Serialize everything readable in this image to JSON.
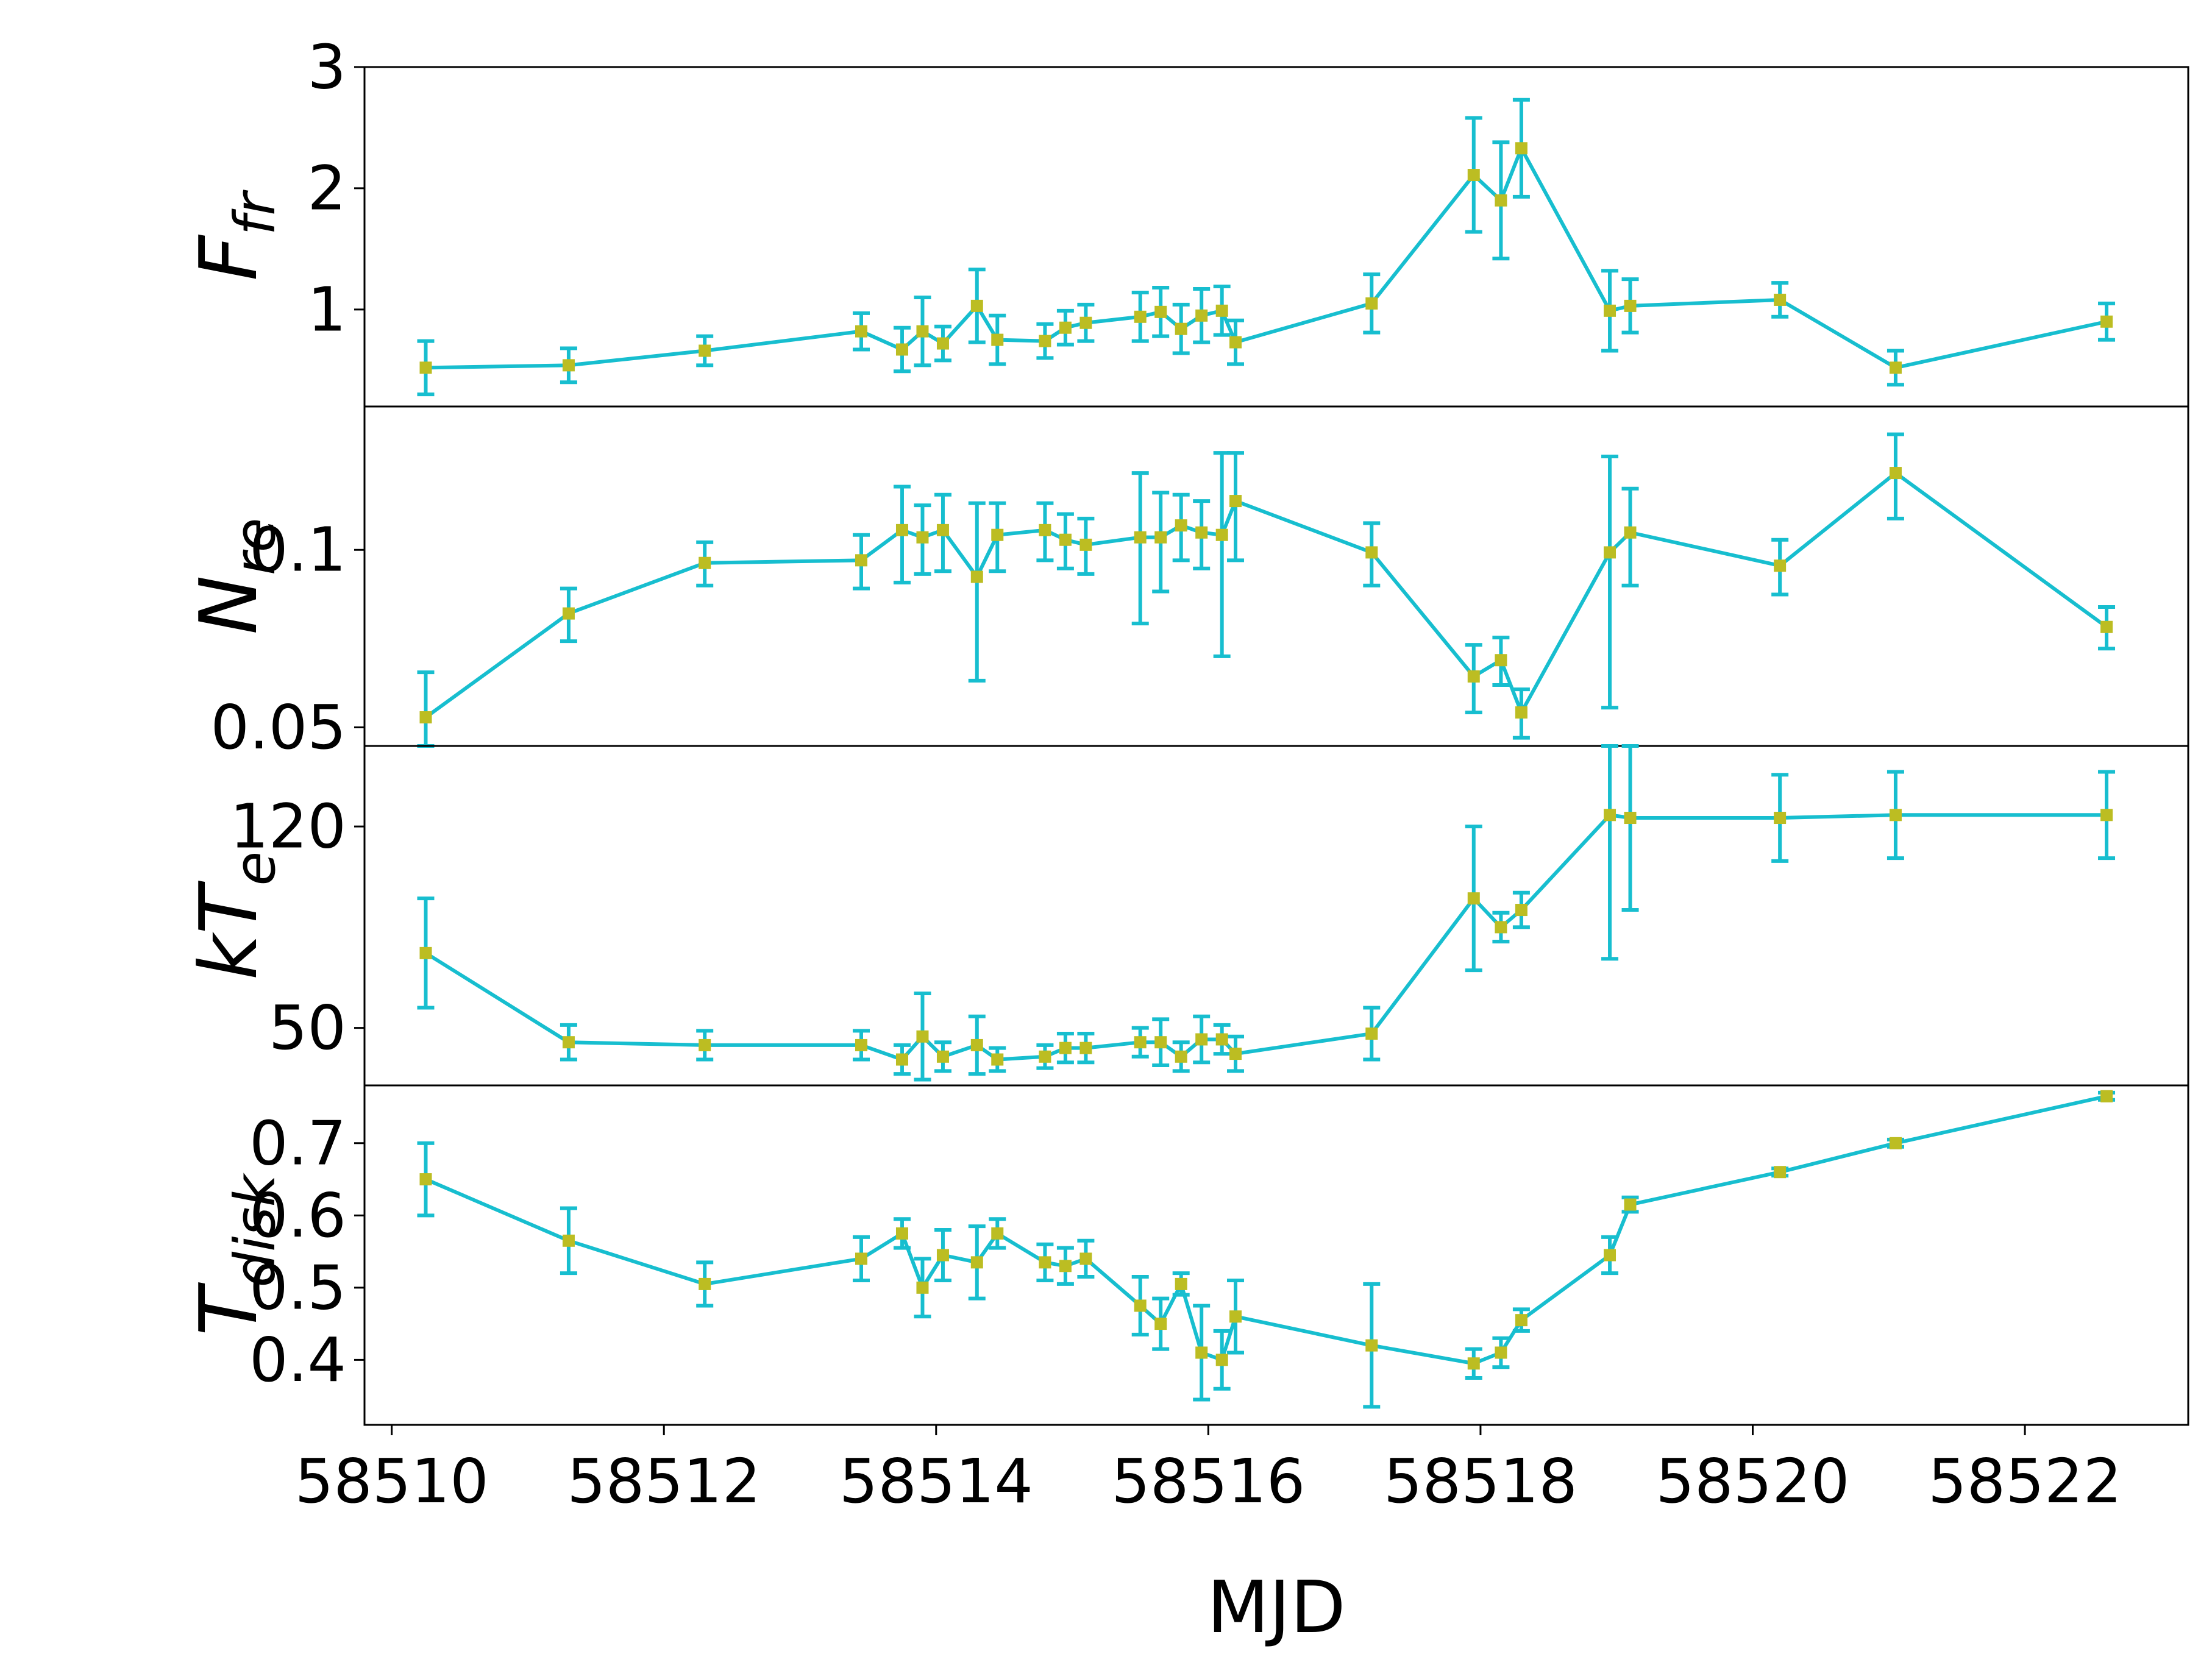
{
  "style": {
    "line_color": "#17becf",
    "error_color": "#17becf",
    "marker_color": "#bcbd22",
    "frame_color": "#000000"
  },
  "chart_data": {
    "type": "line",
    "layout": "4 vertically stacked panels sharing the x axis",
    "xlabel": "MJD",
    "xlim": [
      58509.8,
      58523.2
    ],
    "x_ticks": [
      58510,
      58512,
      58514,
      58516,
      58518,
      58520,
      58522
    ],
    "x_tick_labels": [
      "58510",
      "58512",
      "58514",
      "58516",
      "58518",
      "58520",
      "58522"
    ],
    "x": [
      58510.25,
      58511.3,
      58512.3,
      58513.45,
      58513.75,
      58513.9,
      58514.05,
      58514.3,
      58514.45,
      58514.8,
      58514.95,
      58515.1,
      58515.5,
      58515.65,
      58515.8,
      58515.95,
      58516.1,
      58516.2,
      58517.2,
      58517.95,
      58518.15,
      58518.3,
      58518.95,
      58519.1,
      58520.2,
      58521.05,
      58522.6
    ],
    "grid": false,
    "panels": [
      {
        "key": "F_fr",
        "ylabel": "F",
        "ylabel_sub": "fr",
        "ylim": [
          0.2,
          3.0
        ],
        "yscale": "linear",
        "y_ticks": [
          1,
          2,
          3
        ],
        "y_tick_labels": [
          "1",
          "2",
          "3"
        ],
        "values": [
          0.52,
          0.54,
          0.66,
          0.82,
          0.67,
          0.82,
          0.72,
          1.03,
          0.75,
          0.74,
          0.85,
          0.89,
          0.94,
          0.98,
          0.84,
          0.95,
          0.99,
          0.73,
          1.05,
          2.11,
          1.9,
          2.33,
          0.99,
          1.03,
          1.08,
          0.52,
          0.9
        ],
        "errors": [
          0.22,
          0.14,
          0.12,
          0.15,
          0.18,
          0.28,
          0.14,
          0.3,
          0.2,
          0.14,
          0.14,
          0.15,
          0.2,
          0.2,
          0.2,
          0.22,
          0.2,
          0.18,
          0.24,
          0.47,
          0.48,
          0.4,
          0.33,
          0.22,
          0.14,
          0.14,
          0.15
        ]
      },
      {
        "key": "N_re",
        "ylabel": "N",
        "ylabel_sub": "re",
        "ylim": [
          0.0465,
          0.175
        ],
        "yscale": "log",
        "y_ticks": [
          0.05,
          0.1
        ],
        "y_tick_labels": [
          "0.05",
          "0.1"
        ],
        "values": [
          0.052,
          0.078,
          0.095,
          0.096,
          0.108,
          0.105,
          0.108,
          0.09,
          0.106,
          0.108,
          0.104,
          0.102,
          0.105,
          0.105,
          0.11,
          0.107,
          0.106,
          0.121,
          0.099,
          0.061,
          0.065,
          0.053,
          0.099,
          0.107,
          0.094,
          0.135,
          0.074
        ],
        "errors": [
          0.01,
          0.008,
          0.008,
          0.01,
          0.02,
          0.014,
          0.016,
          0.03,
          0.014,
          0.012,
          0.011,
          0.011,
          0.03,
          0.02,
          0.014,
          0.014,
          0.04,
          0.025,
          0.012,
          0.008,
          0.006,
          0.005,
          0.045,
          0.02,
          0.01,
          0.022,
          0.006
        ]
      },
      {
        "key": "kT_e",
        "ylabel": "kT",
        "ylabel_sub": "e",
        "ylim": [
          30,
          148
        ],
        "yscale": "linear",
        "y_ticks": [
          50,
          120
        ],
        "y_tick_labels": [
          "50",
          "120"
        ],
        "values": [
          76,
          45,
          44,
          44,
          39,
          47,
          40,
          44,
          39,
          40,
          43,
          43,
          45,
          45,
          40,
          46,
          46,
          41,
          48,
          95,
          85,
          91,
          124,
          123,
          123,
          124,
          124
        ],
        "errors": [
          19,
          6,
          5,
          5,
          5,
          15,
          5,
          10,
          4,
          4,
          5,
          5,
          5,
          8,
          5,
          8,
          5,
          6,
          9,
          25,
          5,
          6,
          50,
          32,
          15,
          15,
          15
        ]
      },
      {
        "key": "T_disk",
        "ylabel": "T",
        "ylabel_sub": "disk",
        "ylim": [
          0.31,
          0.78
        ],
        "yscale": "linear",
        "y_ticks": [
          0.4,
          0.5,
          0.6,
          0.7
        ],
        "y_tick_labels": [
          "0.4",
          "0.5",
          "0.6",
          "0.7"
        ],
        "values": [
          0.65,
          0.565,
          0.505,
          0.54,
          0.575,
          0.5,
          0.545,
          0.535,
          0.575,
          0.535,
          0.53,
          0.54,
          0.475,
          0.45,
          0.505,
          0.41,
          0.4,
          0.46,
          0.42,
          0.395,
          0.41,
          0.455,
          0.545,
          0.615,
          0.66,
          0.7,
          0.765
        ],
        "errors": [
          0.05,
          0.045,
          0.03,
          0.03,
          0.02,
          0.04,
          0.035,
          0.05,
          0.02,
          0.025,
          0.025,
          0.025,
          0.04,
          0.035,
          0.015,
          0.065,
          0.04,
          0.05,
          0.085,
          0.02,
          0.02,
          0.015,
          0.025,
          0.01,
          0.005,
          0.005,
          0.005
        ]
      }
    ]
  }
}
